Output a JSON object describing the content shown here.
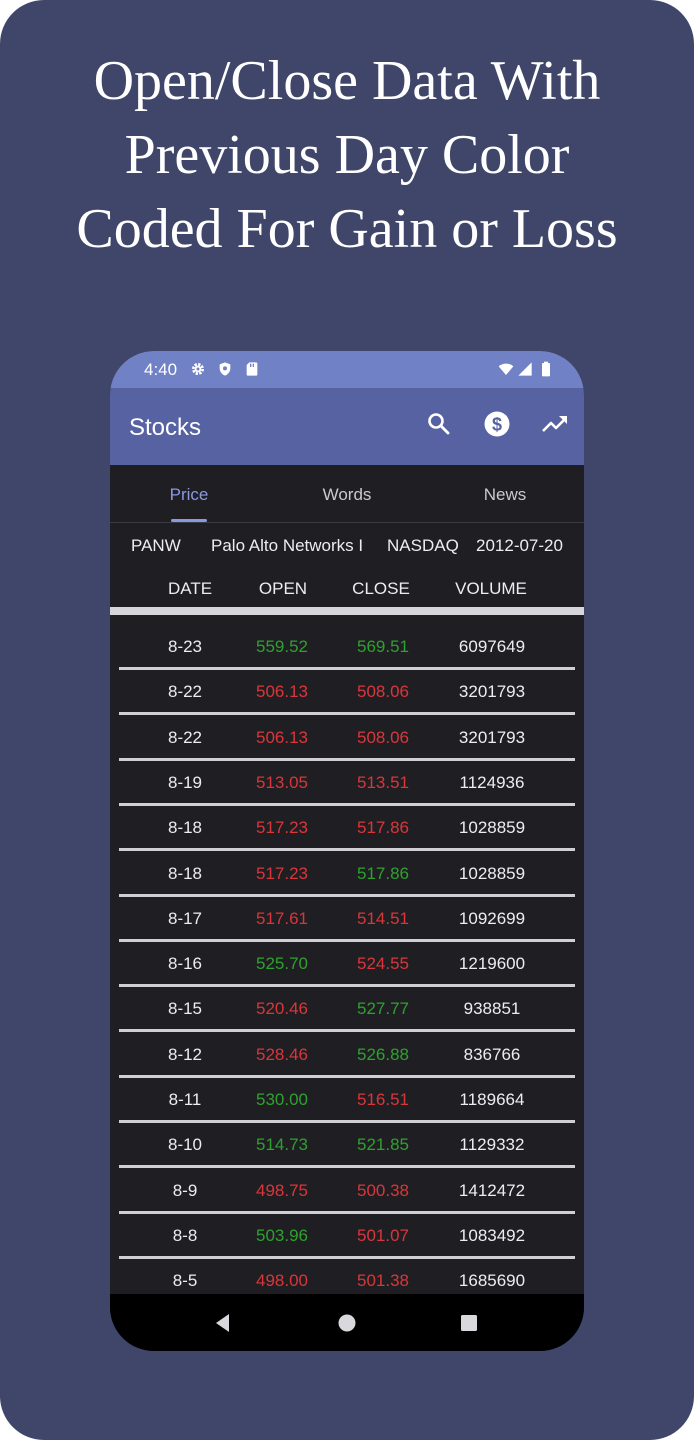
{
  "headline": {
    "line1": "Open/Close Data With",
    "line2": "Previous Day Color",
    "line3": "Coded For Gain or Loss"
  },
  "status_bar": {
    "time": "4:40",
    "icons": [
      "gear-icon",
      "shield-icon",
      "sd-card-icon",
      "wifi-icon",
      "signal-icon",
      "battery-icon"
    ]
  },
  "app_bar": {
    "title": "Stocks",
    "actions": [
      "search-icon",
      "dollar-icon",
      "trending-up-icon"
    ]
  },
  "tabs": [
    {
      "label": "Price",
      "active": true
    },
    {
      "label": "Words",
      "active": false
    },
    {
      "label": "News",
      "active": false
    }
  ],
  "stock_info": {
    "symbol": "PANW",
    "name": "Palo Alto Networks I",
    "exchange": "NASDAQ",
    "ipo_date": "2012-07-20"
  },
  "columns": [
    "DATE",
    "OPEN",
    "CLOSE",
    "VOLUME"
  ],
  "colors": {
    "gain": "#2ea12e",
    "loss": "#d9363a",
    "neutral": "#ededf0",
    "background": "#40466a",
    "app_bar": "#5762a3",
    "status_bar": "#7181c6",
    "accent": "#8a98e0"
  },
  "rows": [
    {
      "date": "8-23",
      "open": "559.52",
      "open_trend": "gain",
      "close": "569.51",
      "close_trend": "gain",
      "volume": "6097649"
    },
    {
      "date": "8-22",
      "open": "506.13",
      "open_trend": "loss",
      "close": "508.06",
      "close_trend": "loss",
      "volume": "3201793"
    },
    {
      "date": "8-22",
      "open": "506.13",
      "open_trend": "loss",
      "close": "508.06",
      "close_trend": "loss",
      "volume": "3201793"
    },
    {
      "date": "8-19",
      "open": "513.05",
      "open_trend": "loss",
      "close": "513.51",
      "close_trend": "loss",
      "volume": "1124936"
    },
    {
      "date": "8-18",
      "open": "517.23",
      "open_trend": "loss",
      "close": "517.86",
      "close_trend": "loss",
      "volume": "1028859"
    },
    {
      "date": "8-18",
      "open": "517.23",
      "open_trend": "loss",
      "close": "517.86",
      "close_trend": "gain",
      "volume": "1028859"
    },
    {
      "date": "8-17",
      "open": "517.61",
      "open_trend": "loss",
      "close": "514.51",
      "close_trend": "loss",
      "volume": "1092699"
    },
    {
      "date": "8-16",
      "open": "525.70",
      "open_trend": "gain",
      "close": "524.55",
      "close_trend": "loss",
      "volume": "1219600"
    },
    {
      "date": "8-15",
      "open": "520.46",
      "open_trend": "loss",
      "close": "527.77",
      "close_trend": "gain",
      "volume": "938851"
    },
    {
      "date": "8-12",
      "open": "528.46",
      "open_trend": "loss",
      "close": "526.88",
      "close_trend": "gain",
      "volume": "836766"
    },
    {
      "date": "8-11",
      "open": "530.00",
      "open_trend": "gain",
      "close": "516.51",
      "close_trend": "loss",
      "volume": "1189664"
    },
    {
      "date": "8-10",
      "open": "514.73",
      "open_trend": "gain",
      "close": "521.85",
      "close_trend": "gain",
      "volume": "1129332"
    },
    {
      "date": "8-9",
      "open": "498.75",
      "open_trend": "loss",
      "close": "500.38",
      "close_trend": "loss",
      "volume": "1412472"
    },
    {
      "date": "8-8",
      "open": "503.96",
      "open_trend": "gain",
      "close": "501.07",
      "close_trend": "loss",
      "volume": "1083492"
    },
    {
      "date": "8-5",
      "open": "498.00",
      "open_trend": "loss",
      "close": "501.38",
      "close_trend": "loss",
      "volume": "1685690"
    }
  ],
  "nav_bar": [
    "back-icon",
    "home-icon",
    "recents-icon"
  ]
}
